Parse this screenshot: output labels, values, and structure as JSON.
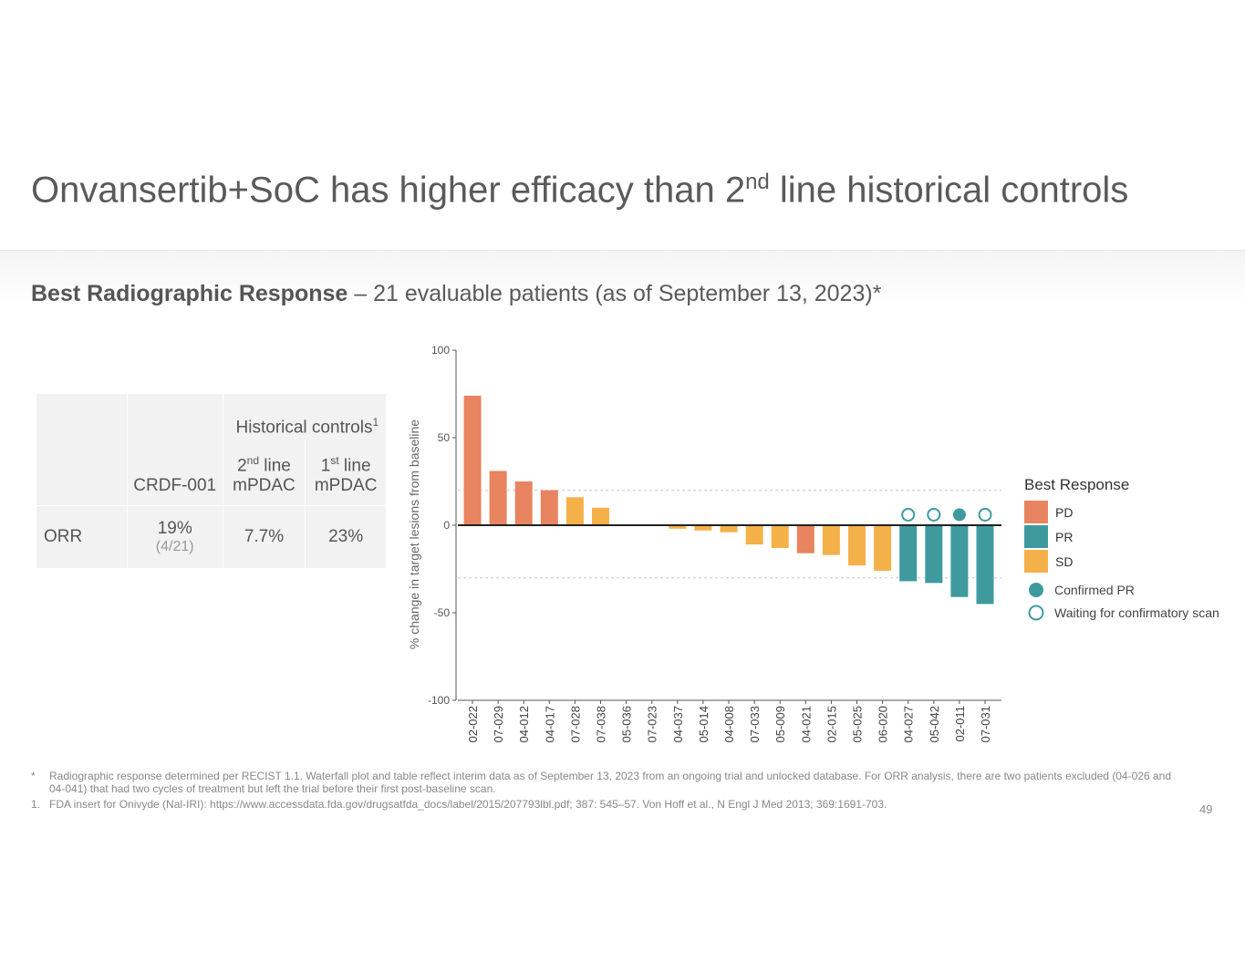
{
  "slide": {
    "title_main": "Onvansertib+SoC has higher efficacy than 2",
    "title_sup": "nd",
    "title_rest": " line historical controls",
    "subtitle_bold": "Best Radiographic Response",
    "subtitle_rest": " – 21 evaluable patients (as of September 13, 2023)*",
    "page_number": "49"
  },
  "table": {
    "group_header": "Historical controls",
    "group_header_sup": "1",
    "col_crdf": "CRDF-001",
    "col_2nd_num": "2",
    "col_2nd_sup": "nd",
    "col_2nd_rest": " line",
    "col_2nd_sub": "mPDAC",
    "col_1st_num": "1",
    "col_1st_sup": "st",
    "col_1st_rest": " line",
    "col_1st_sub": "mPDAC",
    "row_label": "ORR",
    "crdf_value": "19%",
    "crdf_detail": "(4/21)",
    "second_line_value": "7.7%",
    "first_line_value": "23%"
  },
  "chart_data": {
    "type": "bar",
    "ylabel": "% change in target lesions from baseline",
    "ylim": [
      -100,
      100
    ],
    "yticks": [
      100,
      50,
      0,
      -50,
      -100
    ],
    "reference_lines": [
      20,
      -30
    ],
    "categories": [
      "02-022",
      "07-029",
      "04-012",
      "04-017",
      "07-028",
      "07-038",
      "05-036",
      "07-023",
      "04-037",
      "05-014",
      "04-008",
      "07-033",
      "05-009",
      "04-021",
      "02-015",
      "05-025",
      "06-020",
      "04-027",
      "05-042",
      "02-011",
      "07-031"
    ],
    "values": [
      74,
      31,
      25,
      20,
      16,
      10,
      0,
      0,
      -2,
      -3,
      -4,
      -11,
      -13,
      -16,
      -17,
      -23,
      -26,
      -32,
      -33,
      -41,
      -45
    ],
    "response": [
      "PD",
      "PD",
      "PD",
      "PD",
      "SD",
      "SD",
      "SD",
      "SD",
      "SD",
      "SD",
      "SD",
      "SD",
      "SD",
      "PD",
      "SD",
      "SD",
      "SD",
      "PR",
      "PR",
      "PR",
      "PR"
    ],
    "markers": {
      "04-027": "waiting",
      "05-042": "waiting",
      "02-011": "confirmed",
      "07-031": "waiting"
    },
    "colors": {
      "PD": "#e8845f",
      "PR": "#3f9a9e",
      "SD": "#f4b14a"
    },
    "legend": {
      "title": "Best Response",
      "items": [
        "PD",
        "PR",
        "SD"
      ],
      "confirmed_label": "Confirmed PR",
      "waiting_label": "Waiting for confirmatory scan"
    }
  },
  "footnotes": {
    "note1_mark": "*",
    "note1": "Radiographic response determined per RECIST 1.1. Waterfall plot and table reflect interim data as of September 13, 2023 from an ongoing trial and unlocked database. For ORR analysis, there are two patients excluded (04-026 and 04-041) that had two cycles of treatment but left the trial before their first post-baseline scan.",
    "note2_mark": "1.",
    "note2": "FDA insert for Onivyde (Nal-IRI): https://www.accessdata.fda.gov/drugsatfda_docs/label/2015/207793lbl.pdf; 387: 545–57. Von Hoff et al., N Engl J Med 2013; 369:1691-703."
  }
}
